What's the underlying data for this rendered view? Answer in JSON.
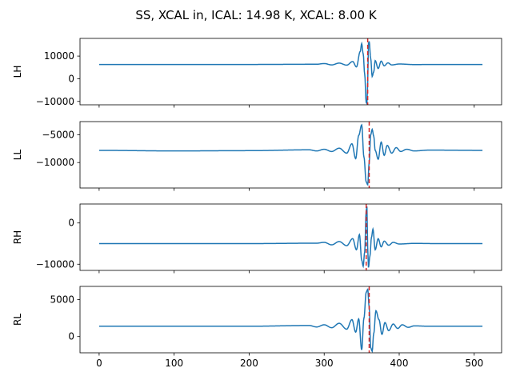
{
  "figure": {
    "title": "SS, XCAL in, ICAL: 14.98 K, XCAL: 8.00 K"
  },
  "chart_data": [
    {
      "type": "line",
      "ylabel": "LH",
      "xlim": [
        -25.5,
        536.5
      ],
      "ylim": [
        -11500,
        17800
      ],
      "yticks": [
        -10000,
        0,
        10000
      ],
      "ytick_labels": [
        "−10000",
        "0",
        "10000"
      ],
      "xticks": [
        0,
        100,
        200,
        300,
        400,
        500
      ],
      "xtick_labels": [],
      "marker_x": 358,
      "series": [
        {
          "color": "#1f77b4",
          "baseline": 6300,
          "x": [
            0,
            100,
            200,
            290,
            300,
            310,
            320,
            330,
            338,
            343,
            348,
            350,
            352,
            354,
            356,
            357,
            358,
            359,
            360,
            362,
            364,
            366,
            368,
            372,
            376,
            380,
            385,
            390,
            400,
            420,
            450,
            511
          ],
          "y": [
            6300,
            6300,
            6300,
            6400,
            6700,
            6100,
            6900,
            6000,
            7600,
            5200,
            12000,
            15500,
            11000,
            2000,
            -10500,
            -11000,
            -2000,
            15500,
            16500,
            9000,
            1000,
            3000,
            8000,
            4500,
            7800,
            5700,
            7000,
            6100,
            6500,
            6250,
            6300,
            6300
          ]
        }
      ]
    },
    {
      "type": "line",
      "ylabel": "LL",
      "xlim": [
        -25.5,
        536.5
      ],
      "ylim": [
        -14600,
        -2600
      ],
      "yticks": [
        -10000,
        -5000
      ],
      "ytick_labels": [
        "−10000",
        "−5000"
      ],
      "xticks": [
        0,
        100,
        200,
        300,
        400,
        500
      ],
      "xtick_labels": [],
      "marker_x": 360,
      "series": [
        {
          "color": "#1f77b4",
          "baseline": -7800,
          "x": [
            0,
            100,
            200,
            280,
            290,
            300,
            310,
            320,
            330,
            337,
            342,
            346,
            350,
            353,
            356,
            358,
            360,
            362,
            364,
            366,
            368,
            372,
            376,
            380,
            384,
            390,
            396,
            402,
            410,
            420,
            440,
            511
          ],
          "y": [
            -7800,
            -7900,
            -7850,
            -7700,
            -7900,
            -7600,
            -8000,
            -7400,
            -8300,
            -6600,
            -9300,
            -5100,
            -3200,
            -9000,
            -13500,
            -14000,
            -10000,
            -5000,
            -4000,
            -5200,
            -7800,
            -9400,
            -6300,
            -8700,
            -6900,
            -8300,
            -7300,
            -8000,
            -7600,
            -7900,
            -7750,
            -7800
          ]
        }
      ]
    },
    {
      "type": "line",
      "ylabel": "RH",
      "xlim": [
        -25.5,
        536.5
      ],
      "ylim": [
        -11500,
        4600
      ],
      "yticks": [
        -10000,
        0
      ],
      "ytick_labels": [
        "−10000",
        "0"
      ],
      "xticks": [
        0,
        100,
        200,
        300,
        400,
        500
      ],
      "xtick_labels": [],
      "marker_x": 356,
      "series": [
        {
          "color": "#1f77b4",
          "baseline": -5000,
          "x": [
            0,
            100,
            200,
            290,
            300,
            310,
            320,
            330,
            338,
            343,
            347,
            350,
            352,
            354,
            356,
            357,
            358,
            359,
            361,
            363,
            365,
            368,
            372,
            376,
            380,
            386,
            392,
            400,
            420,
            450,
            511
          ],
          "y": [
            -5000,
            -5000,
            -5000,
            -4900,
            -4700,
            -5300,
            -4500,
            -5500,
            -3800,
            -6500,
            -2800,
            -9000,
            -10500,
            -7000,
            3000,
            4000,
            -6000,
            -10800,
            -8000,
            -3500,
            -1500,
            -6500,
            -3800,
            -5800,
            -4400,
            -5400,
            -4700,
            -5100,
            -4950,
            -5000,
            -5000
          ]
        }
      ]
    },
    {
      "type": "line",
      "ylabel": "RL",
      "xlim": [
        -25.5,
        536.5
      ],
      "ylim": [
        -2200,
        6800
      ],
      "yticks": [
        0,
        5000
      ],
      "ytick_labels": [
        "0",
        "5000"
      ],
      "xticks": [
        0,
        100,
        200,
        300,
        400,
        500
      ],
      "xtick_labels": [
        "0",
        "100",
        "200",
        "300",
        "400",
        "500"
      ],
      "marker_x": 360,
      "series": [
        {
          "color": "#1f77b4",
          "baseline": 1400,
          "x": [
            0,
            100,
            200,
            280,
            290,
            300,
            310,
            320,
            330,
            337,
            342,
            346,
            350,
            353,
            356,
            358,
            360,
            362,
            364,
            366,
            369,
            373,
            377,
            381,
            386,
            392,
            398,
            404,
            412,
            420,
            440,
            511
          ],
          "y": [
            1400,
            1400,
            1400,
            1500,
            1300,
            1600,
            1200,
            1800,
            1000,
            2300,
            600,
            2400,
            -1800,
            2500,
            6000,
            6400,
            4000,
            -1500,
            -2000,
            400,
            3500,
            2300,
            300,
            1900,
            800,
            1700,
            1100,
            1600,
            1250,
            1450,
            1400,
            1400
          ]
        }
      ]
    }
  ]
}
